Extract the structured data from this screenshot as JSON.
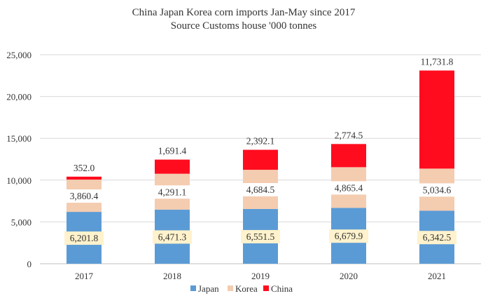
{
  "chart_data": {
    "type": "bar",
    "stacked": true,
    "title": "China Japan Korea corn imports Jan-May since 2017",
    "subtitle": "Source Customs house '000 tonnes",
    "xlabel": "",
    "ylabel": "",
    "ylim": [
      0,
      25000
    ],
    "yticks": [
      0,
      5000,
      10000,
      15000,
      20000,
      25000
    ],
    "ytick_labels": [
      "0",
      "5,000",
      "10,000",
      "15,000",
      "20,000",
      "25,000"
    ],
    "grid": true,
    "legend_position": "bottom",
    "categories": [
      "2017",
      "2018",
      "2019",
      "2020",
      "2021"
    ],
    "series": [
      {
        "name": "Japan",
        "color": "#5B9BD5",
        "label_bg": "#FFF2CC",
        "values": [
          6201.8,
          6471.3,
          6551.5,
          6679.9,
          6342.5
        ],
        "labels": [
          "6,201.8",
          "6,471.3",
          "6,551.5",
          "6,679.9",
          "6,342.5"
        ]
      },
      {
        "name": "Korea",
        "color": "#F4CCB0",
        "label_bg": "#FFFFFF",
        "values": [
          3860.4,
          4291.1,
          4684.5,
          4865.4,
          5034.6
        ],
        "labels": [
          "3,860.4",
          "4,291.1",
          "4,684.5",
          "4,865.4",
          "5,034.6"
        ]
      },
      {
        "name": "China",
        "color": "#FF0D1F",
        "label_bg": "none",
        "values": [
          352.0,
          1691.4,
          2392.1,
          2774.5,
          11731.8
        ],
        "labels": [
          "352.0",
          "1,691.4",
          "2,392.1",
          "2,774.5",
          "11,731.8"
        ]
      }
    ]
  }
}
